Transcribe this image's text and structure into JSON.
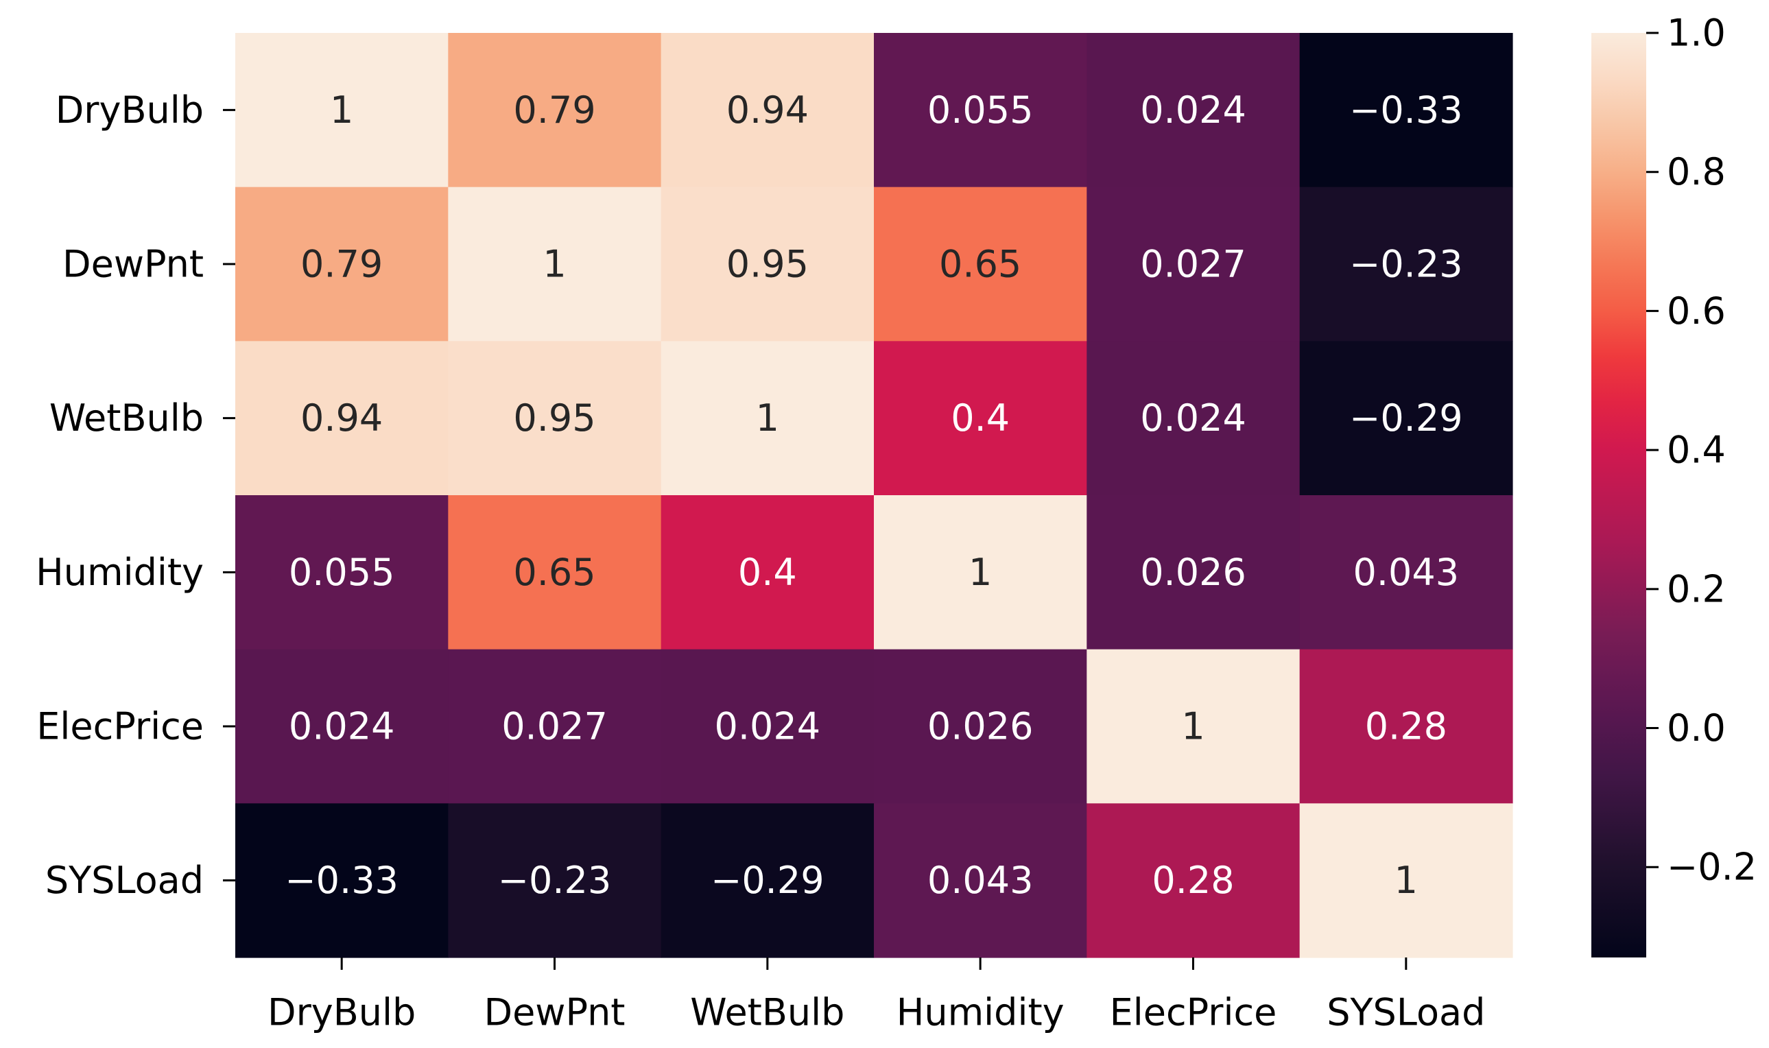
{
  "chart_data": {
    "type": "heatmap",
    "title": "",
    "xlabel": "",
    "ylabel": "",
    "x_categories": [
      "DryBulb",
      "DewPnt",
      "WetBulb",
      "Humidity",
      "ElecPrice",
      "SYSLoad"
    ],
    "y_categories": [
      "DryBulb",
      "DewPnt",
      "WetBulb",
      "Humidity",
      "ElecPrice",
      "SYSLoad"
    ],
    "values": [
      [
        1,
        0.79,
        0.94,
        0.055,
        0.024,
        -0.33
      ],
      [
        0.79,
        1,
        0.95,
        0.65,
        0.027,
        -0.23
      ],
      [
        0.94,
        0.95,
        1,
        0.4,
        0.024,
        -0.29
      ],
      [
        0.055,
        0.65,
        0.4,
        1,
        0.026,
        0.043
      ],
      [
        0.024,
        0.027,
        0.024,
        0.026,
        1,
        0.28
      ],
      [
        -0.33,
        -0.23,
        -0.29,
        0.043,
        0.28,
        1
      ]
    ],
    "annotations": [
      [
        "1",
        "0.79",
        "0.94",
        "0.055",
        "0.024",
        "−0.33"
      ],
      [
        "0.79",
        "1",
        "0.95",
        "0.65",
        "0.027",
        "−0.23"
      ],
      [
        "0.94",
        "0.95",
        "1",
        "0.4",
        "0.024",
        "−0.29"
      ],
      [
        "0.055",
        "0.65",
        "0.4",
        "1",
        "0.026",
        "0.043"
      ],
      [
        "0.024",
        "0.027",
        "0.024",
        "0.026",
        "1",
        "0.28"
      ],
      [
        "−0.33",
        "−0.23",
        "−0.29",
        "0.043",
        "0.28",
        "1"
      ]
    ],
    "colormap": "rocket",
    "vmin": -0.33,
    "vmax": 1.0,
    "colorbar": {
      "ticks": [
        1.0,
        0.8,
        0.6,
        0.4,
        0.2,
        0.0,
        -0.2
      ],
      "tick_labels": [
        "1.0",
        "0.8",
        "0.6",
        "0.4",
        "0.2",
        "0.0",
        "−0.2"
      ],
      "position": "right"
    },
    "legend": "none",
    "grid": false
  }
}
